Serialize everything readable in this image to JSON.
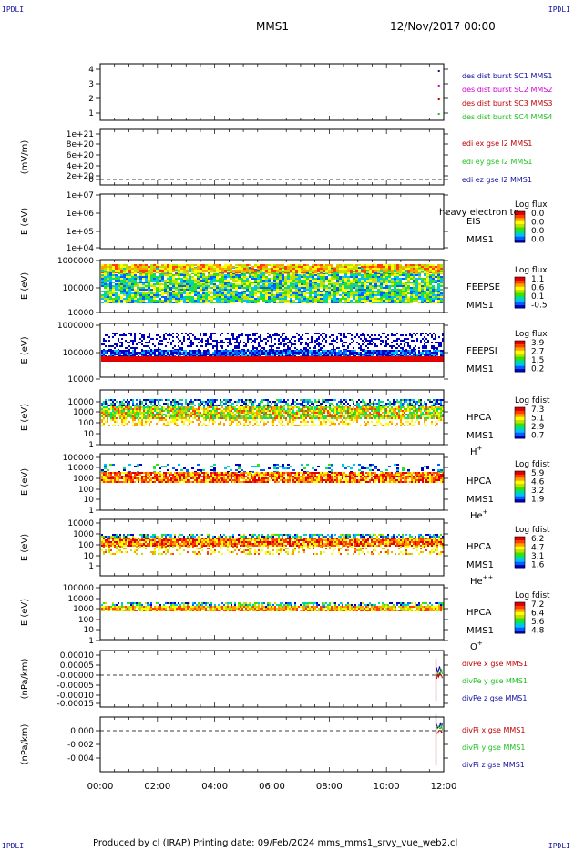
{
  "header": {
    "corner_tl": "IPDLI",
    "corner_tr": "IPDLI",
    "corner_bl": "IPDLI",
    "corner_br": "IPDLI",
    "mission": "MMS1",
    "date": "12/Nov/2017 00:00"
  },
  "footer": {
    "text": "Produced by cl (IRAP)   Printing date: 09/Feb/2024   mms_mms1_srvy_vue_web2.cl"
  },
  "time_axis": {
    "ticks": [
      "00:00",
      "02:00",
      "04:00",
      "06:00",
      "08:00",
      "10:00",
      "12:00"
    ]
  },
  "panels": [
    {
      "id": "p1",
      "type": "line",
      "yticks": [
        "4",
        "3",
        "2",
        "1"
      ],
      "ylabel": "",
      "legend": [
        {
          "text": "des dist burst SC1 MMS1",
          "color": "#1010a0"
        },
        {
          "text": "des dist burst SC2 MMS2",
          "color": "#d000d0"
        },
        {
          "text": "des dist burst SC3 MMS3",
          "color": "#c00000"
        },
        {
          "text": "des dist burst SC4 MMS4",
          "color": "#20c020"
        }
      ]
    },
    {
      "id": "p2",
      "type": "line",
      "yticks": [
        "1e+21",
        "8e+20",
        "6e+20",
        "4e+20",
        "2e+20",
        "0"
      ],
      "ylabel": "(mV/m)",
      "legend": [
        {
          "text": "edi ex gse l2 MMS1",
          "color": "#c00000"
        },
        {
          "text": "edi ey gse l2 MMS1",
          "color": "#20c020"
        },
        {
          "text": "edi ez gse l2 MMS1",
          "color": "#1010a0"
        }
      ]
    },
    {
      "id": "p3",
      "type": "spectrogram",
      "yticks": [
        "1e+07",
        "1e+06",
        "1e+05",
        "1e+04"
      ],
      "ylabel": "E (eV)",
      "labels": [
        "EIS",
        "MMS1"
      ],
      "overlay": "heavy electron to",
      "cbar_title": "Log flux",
      "cbar_ticks": [
        "0.0",
        "0.0",
        "0.0",
        "0.0"
      ]
    },
    {
      "id": "p4",
      "type": "spectrogram",
      "yticks": [
        "1000000",
        "100000",
        "10000"
      ],
      "ylabel": "E (eV)",
      "labels": [
        "FEEPSE",
        "MMS1"
      ],
      "cbar_title": "Log flux",
      "cbar_ticks": [
        "1.1",
        "0.6",
        "0.1",
        "-0.5"
      ]
    },
    {
      "id": "p5",
      "type": "spectrogram",
      "yticks": [
        "1000000",
        "100000",
        "10000"
      ],
      "ylabel": "E (eV)",
      "labels": [
        "FEEPSI",
        "MMS1"
      ],
      "cbar_title": "Log flux",
      "cbar_ticks": [
        "3.9",
        "2.7",
        "1.5",
        "0.2"
      ]
    },
    {
      "id": "p6",
      "type": "spectrogram",
      "yticks": [
        "10000",
        "1000",
        "100",
        "10",
        "1"
      ],
      "ylabel": "E (eV)",
      "labels": [
        "HPCA",
        "MMS1"
      ],
      "species": "H",
      "species_sup": "+",
      "cbar_title": "Log fdist",
      "cbar_ticks": [
        "7.3",
        "5.1",
        "2.9",
        "0.7"
      ]
    },
    {
      "id": "p7",
      "type": "spectrogram",
      "yticks": [
        "100000",
        "10000",
        "1000",
        "100",
        "10",
        "1"
      ],
      "ylabel": "E (eV)",
      "labels": [
        "HPCA",
        "MMS1"
      ],
      "species": "He",
      "species_sup": "+",
      "cbar_title": "Log fdist",
      "cbar_ticks": [
        "5.9",
        "4.6",
        "3.2",
        "1.9"
      ]
    },
    {
      "id": "p8",
      "type": "spectrogram",
      "yticks": [
        "10000",
        "1000",
        "100",
        "10",
        "1"
      ],
      "ylabel": "E (eV)",
      "labels": [
        "HPCA",
        "MMS1"
      ],
      "species": "He",
      "species_sup": "++",
      "cbar_title": "Log fdist",
      "cbar_ticks": [
        "6.2",
        "4.7",
        "3.1",
        "1.6"
      ]
    },
    {
      "id": "p9",
      "type": "spectrogram",
      "yticks": [
        "100000",
        "10000",
        "1000",
        "100",
        "10",
        "1"
      ],
      "ylabel": "E (eV)",
      "labels": [
        "HPCA",
        "MMS1"
      ],
      "species": "O",
      "species_sup": "+",
      "cbar_title": "Log fdist",
      "cbar_ticks": [
        "7.2",
        "6.4",
        "5.6",
        "4.8"
      ]
    },
    {
      "id": "p10",
      "type": "line",
      "yticks": [
        "0.00010",
        "0.00005",
        "-0.00000",
        "-0.00005",
        "-0.00010",
        "-0.00015"
      ],
      "ylabel": "(nPa/km)",
      "legend": [
        {
          "text": "divPe x gse MMS1",
          "color": "#c00000"
        },
        {
          "text": "divPe y gse MMS1",
          "color": "#20c020"
        },
        {
          "text": "divPe z gse MMS1",
          "color": "#1010a0"
        }
      ]
    },
    {
      "id": "p11",
      "type": "line",
      "yticks": [
        "0.000",
        "-0.002",
        "-0.004"
      ],
      "ylabel": "(nPa/km)",
      "legend": [
        {
          "text": "divPi x gse MMS1",
          "color": "#c00000"
        },
        {
          "text": "divPi y gse MMS1",
          "color": "#20c020"
        },
        {
          "text": "divPi z gse MMS1",
          "color": "#1010a0"
        }
      ]
    }
  ],
  "chart_data": {
    "type": "heatmap",
    "title": "MMS1 12/Nov/2017 00:00",
    "x_range": [
      "00:00",
      "12:00"
    ],
    "burst_markers_hour": 11.8,
    "colormap": [
      "#0000c0",
      "#0060ff",
      "#00c0ff",
      "#00e080",
      "#40e000",
      "#c0e000",
      "#ffff00",
      "#ffa000",
      "#ff4000",
      "#e00000"
    ]
  }
}
